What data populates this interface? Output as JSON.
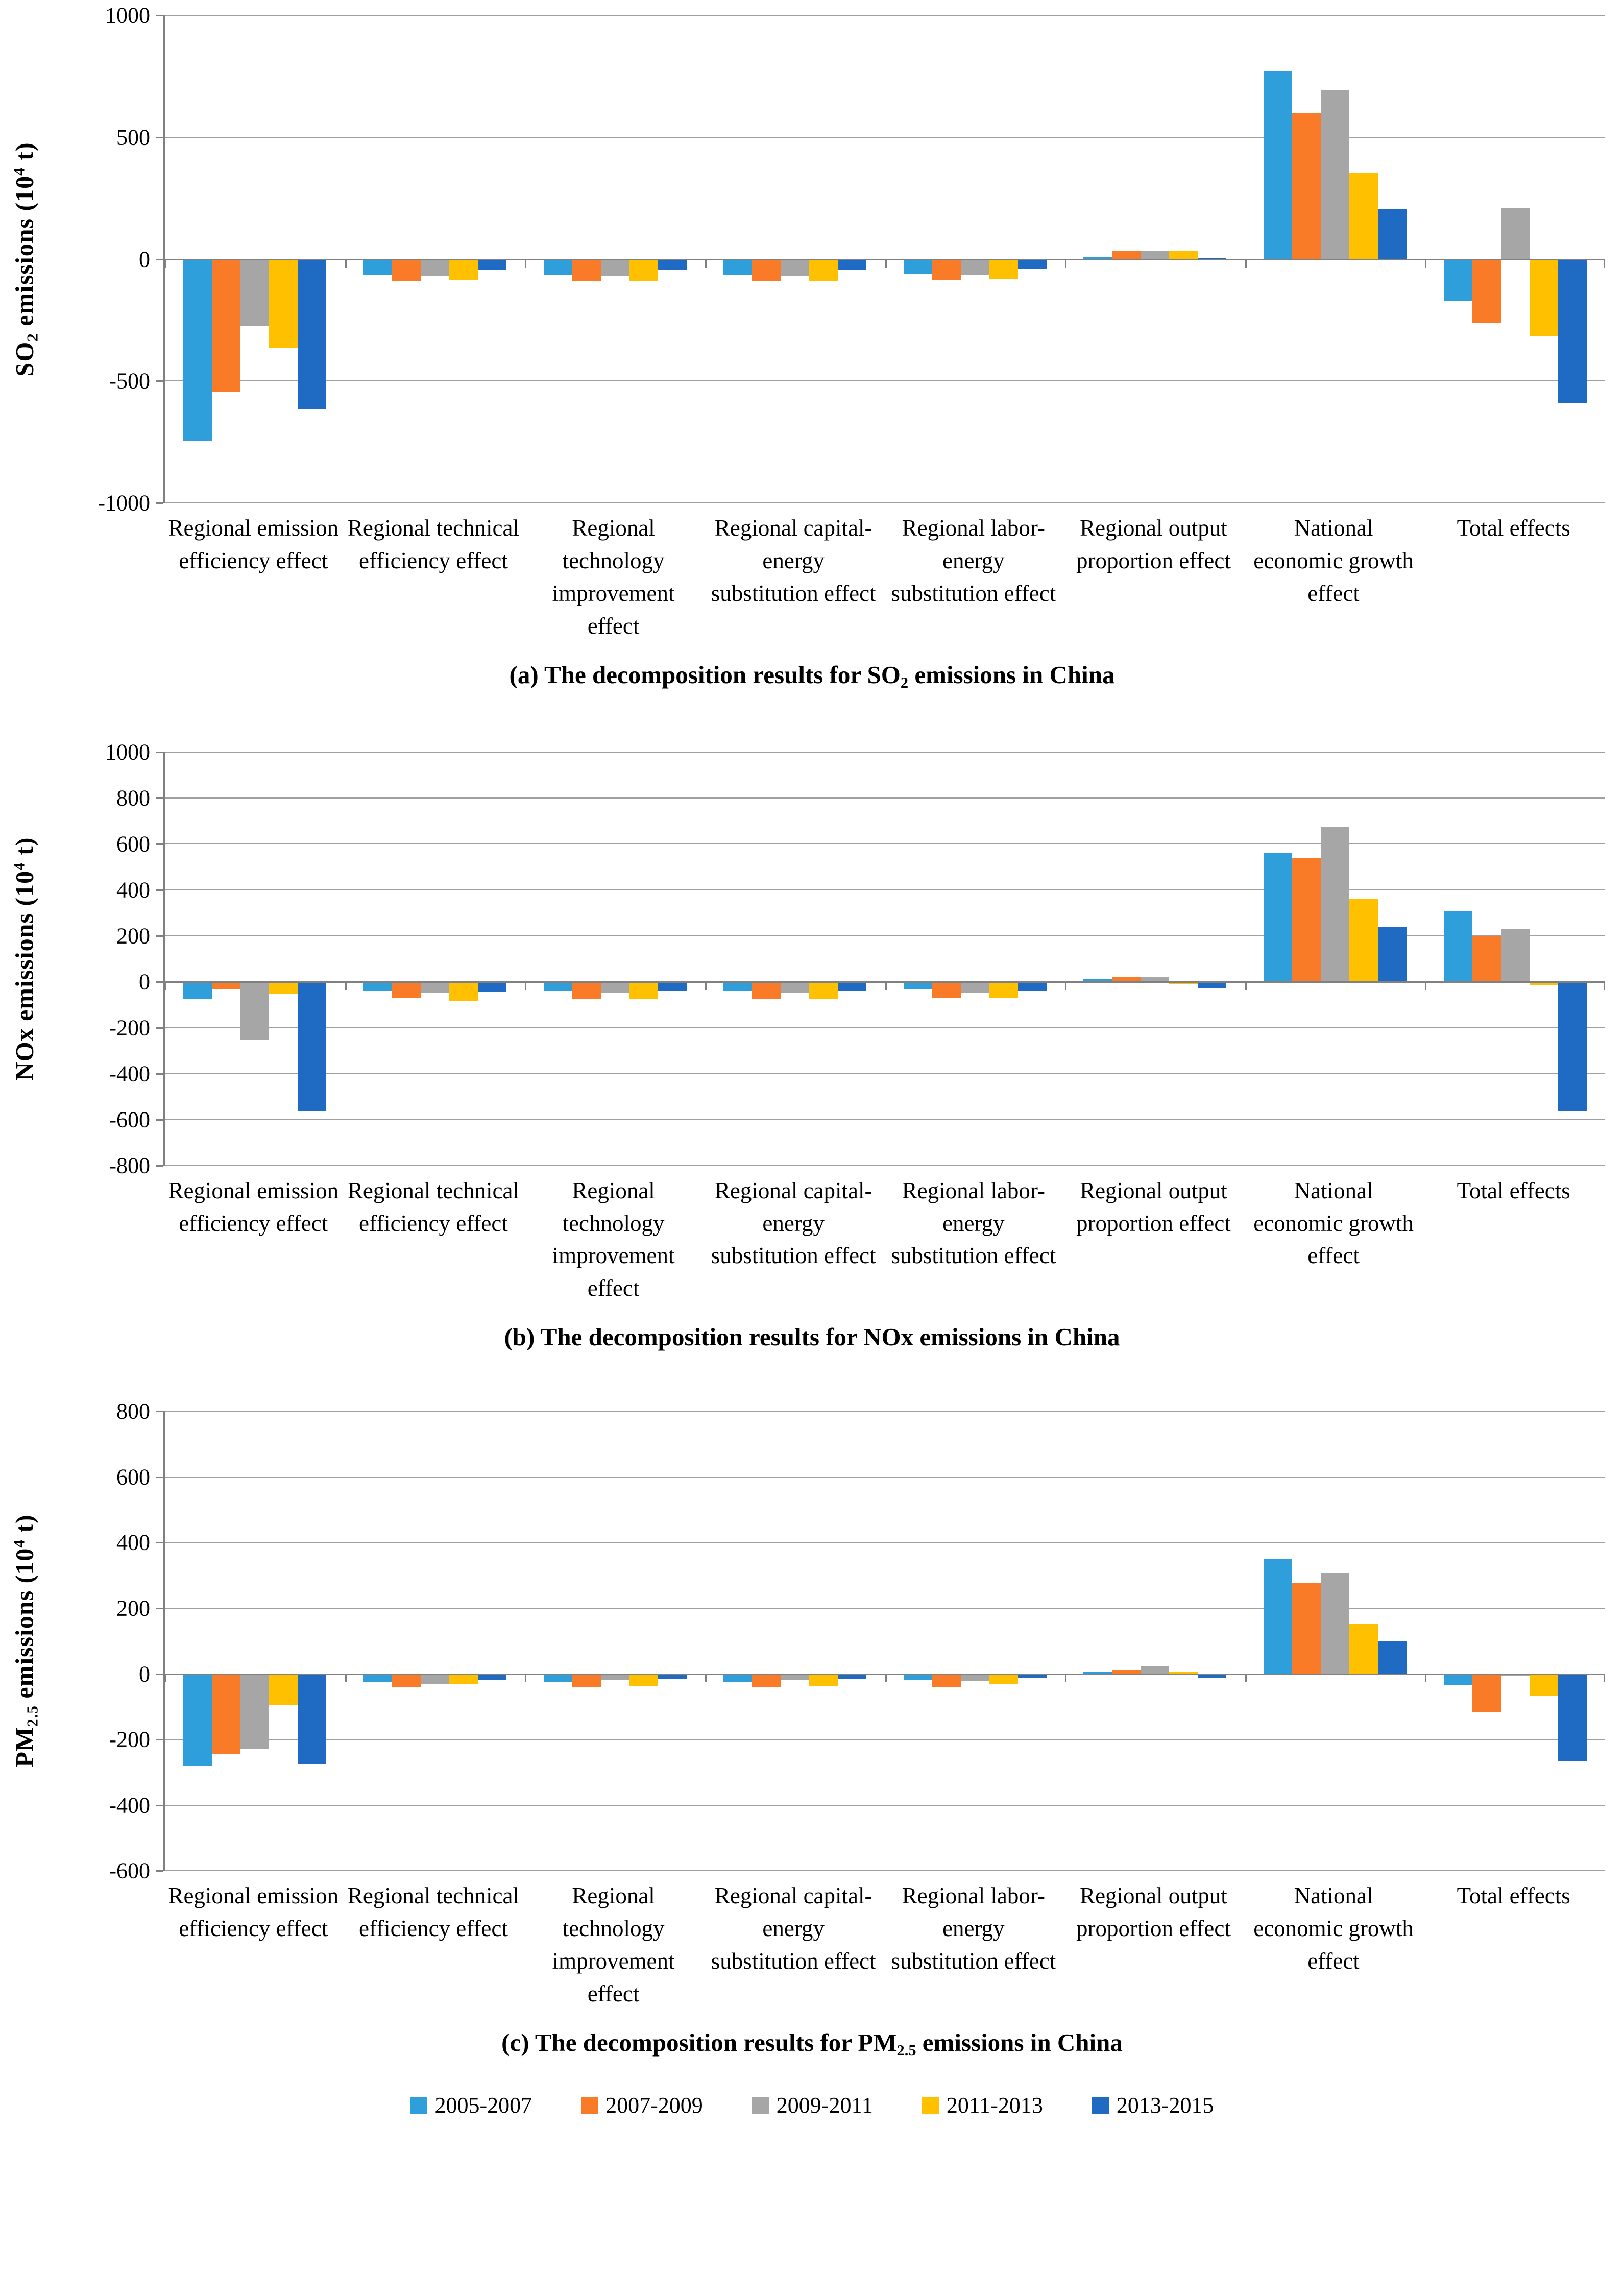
{
  "legend": {
    "items": [
      {
        "label": "2005-2007",
        "color": "#2E9FDA"
      },
      {
        "label": "2007-2009",
        "color": "#F97B28"
      },
      {
        "label": "2009-2011",
        "color": "#A6A6A6"
      },
      {
        "label": "2011-2013",
        "color": "#FFC000"
      },
      {
        "label": "2013-2015",
        "color": "#1F6BC4"
      }
    ]
  },
  "chart_data": [
    {
      "type": "bar",
      "title": "(a) The decomposition results for SO2 emissions in China",
      "caption": {
        "pre": "(a) The decomposition results for SO",
        "sub": "2",
        "post": " emissions in China"
      },
      "y_title": {
        "pre": "SO",
        "sub": "2",
        "mid": " emissions (10",
        "sup": "4",
        "post": " t)"
      },
      "ylabel": "SO2 emissions (10^4 t)",
      "ylim": [
        -1000,
        1000
      ],
      "ystep": 500,
      "grid": true,
      "legend_position": "bottom",
      "categories": [
        "Regional emission efficiency effect",
        "Regional technical efficiency effect",
        "Regional technology improvement effect",
        "Regional capital-energy substitution effect",
        "Regional labor-energy substitution effect",
        "Regional output proportion effect",
        "National economic growth effect",
        "Total effects"
      ],
      "series": [
        {
          "name": "2005-2007",
          "color": "#2E9FDA",
          "values": [
            -745,
            -65,
            -65,
            -65,
            -60,
            10,
            770,
            -170
          ]
        },
        {
          "name": "2007-2009",
          "color": "#F97B28",
          "values": [
            -545,
            -90,
            -90,
            -90,
            -85,
            35,
            600,
            -260
          ]
        },
        {
          "name": "2009-2011",
          "color": "#A6A6A6",
          "values": [
            -275,
            -70,
            -70,
            -70,
            -65,
            35,
            695,
            210
          ]
        },
        {
          "name": "2011-2013",
          "color": "#FFC000",
          "values": [
            -365,
            -85,
            -90,
            -90,
            -80,
            35,
            355,
            -315
          ]
        },
        {
          "name": "2013-2015",
          "color": "#1F6BC4",
          "values": [
            -615,
            -45,
            -45,
            -45,
            -40,
            5,
            205,
            -590
          ]
        }
      ]
    },
    {
      "type": "bar",
      "title": "(b) The decomposition results for NOx emissions in China",
      "caption": {
        "pre": "(b) The decomposition results for NOx emissions in China",
        "sub": "",
        "post": ""
      },
      "y_title": {
        "pre": "NOx",
        "sub": "",
        "mid": " emissions (10",
        "sup": "4",
        "post": " t)"
      },
      "ylabel": "NOx emissions (10^4 t)",
      "ylim": [
        -800,
        1000
      ],
      "ystep": 200,
      "grid": true,
      "legend_position": "bottom",
      "categories": [
        "Regional emission efficiency effect",
        "Regional technical efficiency effect",
        "Regional technology improvement effect",
        "Regional capital-energy substitution effect",
        "Regional labor-energy substitution effect",
        "Regional output proportion effect",
        "National economic growth effect",
        "Total effects"
      ],
      "series": [
        {
          "name": "2005-2007",
          "color": "#2E9FDA",
          "values": [
            -75,
            -40,
            -40,
            -40,
            -35,
            10,
            560,
            305
          ]
        },
        {
          "name": "2007-2009",
          "color": "#F97B28",
          "values": [
            -35,
            -70,
            -75,
            -75,
            -70,
            20,
            540,
            200
          ]
        },
        {
          "name": "2009-2011",
          "color": "#A6A6A6",
          "values": [
            -255,
            -50,
            -50,
            -50,
            -50,
            20,
            675,
            230
          ]
        },
        {
          "name": "2011-2013",
          "color": "#FFC000",
          "values": [
            -55,
            -85,
            -75,
            -75,
            -70,
            -10,
            360,
            -15
          ]
        },
        {
          "name": "2013-2015",
          "color": "#1F6BC4",
          "values": [
            -565,
            -45,
            -40,
            -40,
            -40,
            -30,
            240,
            -565
          ]
        }
      ]
    },
    {
      "type": "bar",
      "title": "(c) The decomposition results for PM2.5 emissions in China",
      "caption": {
        "pre": "(c) The decomposition results for PM",
        "sub": "2.5",
        "post": " emissions in China"
      },
      "y_title": {
        "pre": "PM",
        "sub": "2.5",
        "mid": " emissions (10",
        "sup": "4",
        "post": " t)"
      },
      "ylabel": "PM2.5 emissions (10^4 t)",
      "ylim": [
        -600,
        800
      ],
      "ystep": 200,
      "grid": true,
      "legend_position": "bottom",
      "categories": [
        "Regional emission efficiency effect",
        "Regional technical efficiency effect",
        "Regional technology improvement effect",
        "Regional capital-energy substitution effect",
        "Regional labor-energy substitution effect",
        "Regional output proportion effect",
        "National economic growth effect",
        "Total effects"
      ],
      "series": [
        {
          "name": "2005-2007",
          "color": "#2E9FDA",
          "values": [
            -280,
            -25,
            -25,
            -25,
            -20,
            5,
            350,
            -35
          ]
        },
        {
          "name": "2007-2009",
          "color": "#F97B28",
          "values": [
            -245,
            -40,
            -40,
            -40,
            -40,
            12,
            278,
            -118
          ]
        },
        {
          "name": "2009-2011",
          "color": "#A6A6A6",
          "values": [
            -230,
            -30,
            -20,
            -20,
            -22,
            22,
            308,
            -5
          ]
        },
        {
          "name": "2011-2013",
          "color": "#FFC000",
          "values": [
            -95,
            -30,
            -36,
            -38,
            -32,
            6,
            153,
            -67
          ]
        },
        {
          "name": "2013-2015",
          "color": "#1F6BC4",
          "values": [
            -275,
            -18,
            -16,
            -15,
            -13,
            -12,
            100,
            -265
          ]
        }
      ]
    }
  ]
}
